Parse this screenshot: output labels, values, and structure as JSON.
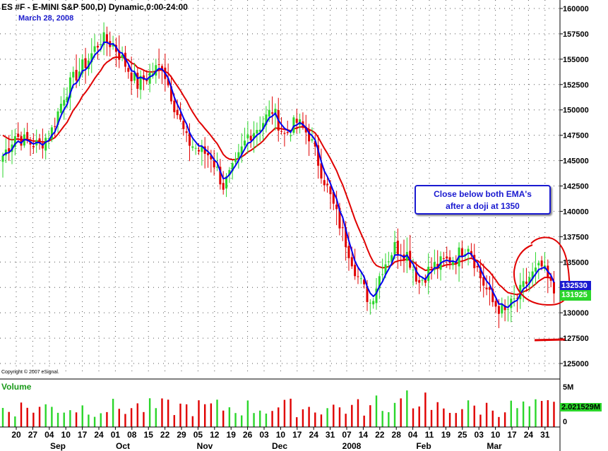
{
  "header": {
    "title": "ES #F - E-MINI S&P 500,D) Dynamic,0:00-24:00",
    "date": "March 28, 2008"
  },
  "copyright": "Copyright © 2007 eSignal.",
  "volume_label": "Volume",
  "annotation": {
    "line1": "Close below both EMA's",
    "line2": "after a doji at 1350"
  },
  "price_tags": {
    "last": "132530",
    "ema": "131925"
  },
  "volume_tag": "2.021529M",
  "colors": {
    "up": "#2bd62b",
    "down": "#e00000",
    "fast_ema": "#0000ee",
    "slow_ema": "#e00000",
    "volume_up": "#2bd62b",
    "volume_down": "#e00000",
    "markup": "#e00000"
  },
  "chart_data": {
    "type": "candlestick",
    "ylim": [
      124000,
      161000
    ],
    "y_ticks": [
      "125000",
      "127500",
      "130000",
      "132500",
      "135000",
      "137500",
      "140000",
      "142500",
      "145000",
      "147500",
      "150000",
      "152500",
      "155000",
      "157500",
      "160000"
    ],
    "volume_ticks": [
      "5M",
      "0"
    ],
    "x_ticks": [
      "20",
      "27",
      "04",
      "10",
      "17",
      "24",
      "01",
      "08",
      "15",
      "22",
      "29",
      "05",
      "12",
      "19",
      "26",
      "03",
      "10",
      "17",
      "24",
      "31",
      "07",
      "14",
      "22",
      "28",
      "04",
      "11",
      "19",
      "25",
      "03",
      "10",
      "17",
      "24",
      "31"
    ],
    "month_labels": [
      "Sep",
      "Oct",
      "Nov",
      "Dec",
      "2008",
      "Feb",
      "Mar"
    ],
    "grid": true,
    "series": [
      {
        "name": "fast EMA"
      },
      {
        "name": "slow EMA"
      }
    ],
    "anchors": [
      [
        0,
        145500
      ],
      [
        4,
        147500
      ],
      [
        8,
        146800
      ],
      [
        12,
        146500
      ],
      [
        16,
        148000
      ],
      [
        20,
        151500
      ],
      [
        24,
        153500
      ],
      [
        28,
        155000
      ],
      [
        32,
        157000
      ],
      [
        36,
        156500
      ],
      [
        40,
        154500
      ],
      [
        44,
        152500
      ],
      [
        48,
        153500
      ],
      [
        52,
        154500
      ],
      [
        56,
        150500
      ],
      [
        60,
        147000
      ],
      [
        64,
        146000
      ],
      [
        68,
        145500
      ],
      [
        72,
        142500
      ],
      [
        76,
        144500
      ],
      [
        80,
        147500
      ],
      [
        84,
        148500
      ],
      [
        88,
        150000
      ],
      [
        92,
        147500
      ],
      [
        96,
        148800
      ],
      [
        100,
        147500
      ],
      [
        104,
        144000
      ],
      [
        108,
        140500
      ],
      [
        112,
        137000
      ],
      [
        116,
        133500
      ],
      [
        120,
        131000
      ],
      [
        124,
        134500
      ],
      [
        128,
        136500
      ],
      [
        132,
        135800
      ],
      [
        136,
        133000
      ],
      [
        140,
        134500
      ],
      [
        144,
        135000
      ],
      [
        148,
        135500
      ],
      [
        152,
        136800
      ],
      [
        156,
        133500
      ],
      [
        160,
        131000
      ],
      [
        164,
        130000
      ],
      [
        168,
        131500
      ],
      [
        172,
        133500
      ],
      [
        176,
        134500
      ],
      [
        180,
        132000
      ]
    ],
    "volume_scale_max": 5
  }
}
